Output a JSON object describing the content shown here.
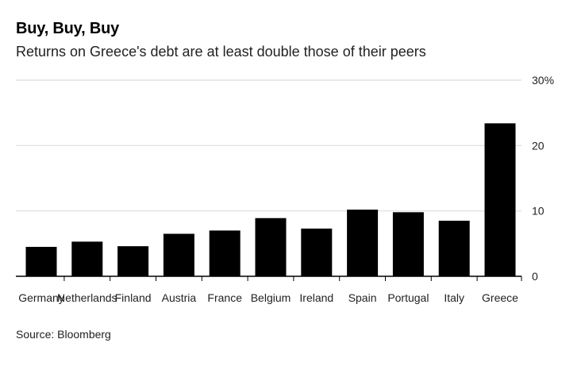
{
  "title": "Buy, Buy, Buy",
  "subtitle": "Returns on Greece's debt are at least double those of their peers",
  "source": "Source: Bloomberg",
  "colors": {
    "bar": "#000000",
    "grid": "#dddddd",
    "axis": "#000000",
    "text": "#222222"
  },
  "chart_data": {
    "type": "bar",
    "title": "Buy, Buy, Buy",
    "subtitle": "Returns on Greece's debt are at least double those of their peers",
    "categories": [
      "Germany",
      "Netherlands",
      "Finland",
      "Austria",
      "France",
      "Belgium",
      "Ireland",
      "Spain",
      "Portugal",
      "Italy",
      "Greece"
    ],
    "values": [
      4.5,
      5.3,
      4.6,
      6.5,
      7.0,
      8.9,
      7.3,
      10.2,
      9.8,
      8.5,
      23.4
    ],
    "xlabel": "",
    "ylabel": "",
    "ylim": [
      0,
      30
    ],
    "yticks": [
      {
        "value": 0,
        "label": "0"
      },
      {
        "value": 10,
        "label": "10"
      },
      {
        "value": 20,
        "label": "20"
      },
      {
        "value": 30,
        "label": "30%"
      }
    ],
    "grid": true,
    "y_axis_side": "right",
    "legend": "none"
  }
}
